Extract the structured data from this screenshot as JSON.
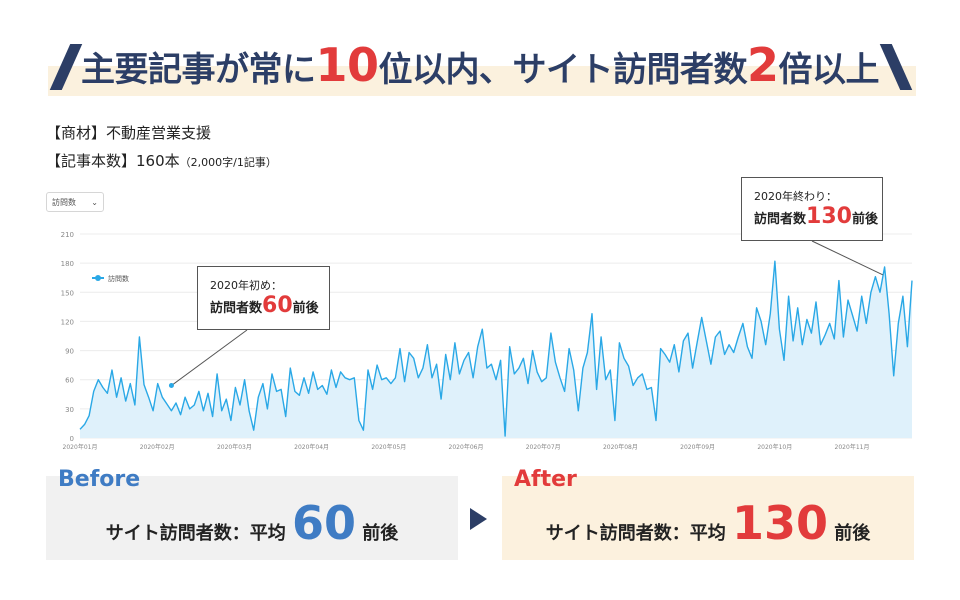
{
  "headline": {
    "part1": "主要記事が常に",
    "num1": "10",
    "part2": "位以内、サイト訪問者数",
    "num2": "2",
    "part3": "倍以上"
  },
  "meta": {
    "line1": "【商材】不動産営業支援",
    "line2_main": "【記事本数】160本",
    "line2_note": "（2,000字/1記事）"
  },
  "dropdown": {
    "value": "訪問数"
  },
  "callouts": {
    "start": {
      "line1": "2020年初め：",
      "prefix": "訪問者数",
      "value": "60",
      "suffix": "前後"
    },
    "end": {
      "line1": "2020年終わり：",
      "prefix": "訪問者数",
      "value": "130",
      "suffix": "前後"
    }
  },
  "colors": {
    "line": "#2aa8e6",
    "fill": "#dff1fb",
    "accent_red": "#e23b3b",
    "accent_blue": "#3f7cc4",
    "navy": "#2c3e66"
  },
  "chart_data": {
    "type": "area",
    "series": [
      {
        "name": "訪問数"
      }
    ],
    "x_ticks": [
      "2020年01月",
      "2020年02月",
      "2020年03月",
      "2020年04月",
      "2020年05月",
      "2020年06月",
      "2020年07月",
      "2020年08月",
      "2020年09月",
      "2020年10月",
      "2020年11月"
    ],
    "y_ticks": [
      0,
      30,
      60,
      90,
      120,
      150,
      180,
      210
    ],
    "ylim": [
      0,
      210
    ],
    "grid": true,
    "legend": "top-left",
    "points": [
      [
        0,
        9
      ],
      [
        5,
        14
      ],
      [
        10,
        23
      ],
      [
        15,
        48
      ],
      [
        20,
        60
      ],
      [
        25,
        52
      ],
      [
        30,
        46
      ],
      [
        35,
        70
      ],
      [
        40,
        42
      ],
      [
        45,
        62
      ],
      [
        50,
        38
      ],
      [
        55,
        56
      ],
      [
        60,
        34
      ],
      [
        65,
        104
      ],
      [
        70,
        55
      ],
      [
        75,
        42
      ],
      [
        80,
        28
      ],
      [
        85,
        56
      ],
      [
        90,
        42
      ],
      [
        95,
        35
      ],
      [
        100,
        28
      ],
      [
        105,
        36
      ],
      [
        110,
        24
      ],
      [
        115,
        42
      ],
      [
        120,
        30
      ],
      [
        125,
        34
      ],
      [
        130,
        48
      ],
      [
        135,
        28
      ],
      [
        140,
        46
      ],
      [
        145,
        22
      ],
      [
        150,
        66
      ],
      [
        155,
        28
      ],
      [
        160,
        40
      ],
      [
        165,
        18
      ],
      [
        170,
        52
      ],
      [
        175,
        34
      ],
      [
        180,
        60
      ],
      [
        185,
        28
      ],
      [
        190,
        8
      ],
      [
        195,
        42
      ],
      [
        200,
        56
      ],
      [
        205,
        30
      ],
      [
        210,
        66
      ],
      [
        215,
        48
      ],
      [
        220,
        50
      ],
      [
        225,
        22
      ],
      [
        230,
        72
      ],
      [
        235,
        48
      ],
      [
        240,
        44
      ],
      [
        245,
        62
      ],
      [
        250,
        46
      ],
      [
        255,
        68
      ],
      [
        260,
        50
      ],
      [
        265,
        54
      ],
      [
        270,
        45
      ],
      [
        275,
        70
      ],
      [
        280,
        52
      ],
      [
        285,
        68
      ],
      [
        290,
        62
      ],
      [
        295,
        60
      ],
      [
        300,
        62
      ],
      [
        305,
        18
      ],
      [
        310,
        8
      ],
      [
        315,
        70
      ],
      [
        320,
        50
      ],
      [
        325,
        75
      ],
      [
        330,
        60
      ],
      [
        335,
        62
      ],
      [
        340,
        56
      ],
      [
        345,
        62
      ],
      [
        350,
        92
      ],
      [
        355,
        58
      ],
      [
        360,
        88
      ],
      [
        365,
        82
      ],
      [
        370,
        62
      ],
      [
        375,
        72
      ],
      [
        380,
        96
      ],
      [
        385,
        62
      ],
      [
        390,
        76
      ],
      [
        395,
        40
      ],
      [
        400,
        86
      ],
      [
        405,
        60
      ],
      [
        410,
        98
      ],
      [
        415,
        66
      ],
      [
        420,
        80
      ],
      [
        425,
        88
      ],
      [
        430,
        62
      ],
      [
        435,
        94
      ],
      [
        440,
        112
      ],
      [
        445,
        72
      ],
      [
        450,
        76
      ],
      [
        455,
        60
      ],
      [
        460,
        80
      ],
      [
        465,
        2
      ],
      [
        470,
        94
      ],
      [
        475,
        66
      ],
      [
        480,
        72
      ],
      [
        485,
        82
      ],
      [
        490,
        56
      ],
      [
        495,
        90
      ],
      [
        500,
        68
      ],
      [
        505,
        58
      ],
      [
        510,
        62
      ],
      [
        515,
        108
      ],
      [
        520,
        78
      ],
      [
        525,
        62
      ],
      [
        530,
        48
      ],
      [
        535,
        92
      ],
      [
        540,
        70
      ],
      [
        545,
        28
      ],
      [
        550,
        72
      ],
      [
        555,
        88
      ],
      [
        560,
        128
      ],
      [
        565,
        50
      ],
      [
        570,
        104
      ],
      [
        575,
        60
      ],
      [
        580,
        70
      ],
      [
        585,
        18
      ],
      [
        590,
        98
      ],
      [
        595,
        82
      ],
      [
        600,
        74
      ],
      [
        605,
        54
      ],
      [
        610,
        62
      ],
      [
        615,
        66
      ],
      [
        620,
        50
      ],
      [
        625,
        52
      ],
      [
        630,
        18
      ],
      [
        635,
        92
      ],
      [
        640,
        86
      ],
      [
        645,
        78
      ],
      [
        650,
        96
      ],
      [
        655,
        68
      ],
      [
        660,
        100
      ],
      [
        665,
        108
      ],
      [
        670,
        72
      ],
      [
        675,
        98
      ],
      [
        680,
        124
      ],
      [
        685,
        100
      ],
      [
        690,
        76
      ],
      [
        695,
        104
      ],
      [
        700,
        110
      ],
      [
        705,
        86
      ],
      [
        710,
        96
      ],
      [
        715,
        88
      ],
      [
        720,
        104
      ],
      [
        725,
        118
      ],
      [
        730,
        94
      ],
      [
        735,
        82
      ],
      [
        740,
        134
      ],
      [
        745,
        120
      ],
      [
        750,
        96
      ],
      [
        755,
        128
      ],
      [
        760,
        182
      ],
      [
        765,
        112
      ],
      [
        770,
        80
      ],
      [
        775,
        146
      ],
      [
        780,
        100
      ],
      [
        785,
        134
      ],
      [
        790,
        96
      ],
      [
        795,
        122
      ],
      [
        800,
        108
      ],
      [
        805,
        140
      ],
      [
        810,
        96
      ],
      [
        815,
        106
      ],
      [
        820,
        118
      ],
      [
        825,
        102
      ],
      [
        830,
        162
      ],
      [
        835,
        104
      ],
      [
        840,
        142
      ],
      [
        845,
        126
      ],
      [
        850,
        110
      ],
      [
        855,
        146
      ],
      [
        860,
        118
      ],
      [
        865,
        150
      ],
      [
        870,
        166
      ],
      [
        875,
        150
      ],
      [
        880,
        176
      ],
      [
        885,
        128
      ],
      [
        890,
        64
      ],
      [
        895,
        118
      ],
      [
        900,
        146
      ],
      [
        905,
        94
      ],
      [
        910,
        162
      ]
    ]
  },
  "before": {
    "tag": "Before",
    "label": "サイト訪問者数：平均",
    "value": "60",
    "suffix": "前後"
  },
  "after": {
    "tag": "After",
    "label": "サイト訪問者数：平均",
    "value": "130",
    "suffix": "前後"
  }
}
